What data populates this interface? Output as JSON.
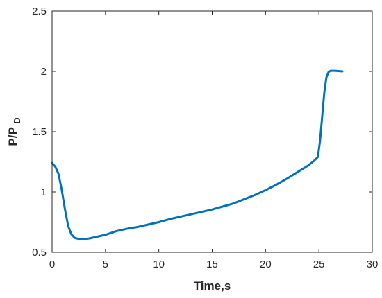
{
  "chart_data": {
    "type": "line",
    "title": "",
    "xlabel": "Time,s",
    "ylabel": "P/P",
    "ylabel_subscript": "D",
    "xlim": [
      0,
      30
    ],
    "ylim": [
      0.5,
      2.5
    ],
    "x_ticks": [
      0,
      5,
      10,
      15,
      20,
      25,
      30
    ],
    "x_tick_labels": [
      "0",
      "5",
      "10",
      "15",
      "20",
      "25",
      "30"
    ],
    "y_ticks": [
      0.5,
      1,
      1.5,
      2,
      2.5
    ],
    "y_tick_labels": [
      "0.5",
      "1",
      "1.5",
      "2",
      "2.5"
    ],
    "grid": false,
    "line_color": "#0072BD",
    "series": [
      {
        "x": [
          0,
          0.3,
          0.6,
          0.9,
          1.2,
          1.5,
          1.8,
          2.1,
          2.5,
          3.0,
          3.5,
          4.0,
          5,
          6,
          7,
          8,
          9,
          10,
          11,
          12,
          13,
          14,
          15,
          16,
          17,
          18,
          19,
          20,
          21,
          22,
          23,
          24,
          24.5,
          24.9,
          25.1,
          25.3,
          25.5,
          25.7,
          25.9,
          26.1,
          26.5,
          27.2
        ],
        "y": [
          1.24,
          1.21,
          1.15,
          1.02,
          0.86,
          0.72,
          0.65,
          0.62,
          0.61,
          0.61,
          0.615,
          0.625,
          0.645,
          0.675,
          0.695,
          0.71,
          0.73,
          0.75,
          0.775,
          0.795,
          0.815,
          0.835,
          0.855,
          0.88,
          0.905,
          0.94,
          0.975,
          1.015,
          1.06,
          1.11,
          1.165,
          1.22,
          1.255,
          1.29,
          1.42,
          1.62,
          1.82,
          1.95,
          1.995,
          2.005,
          2.005,
          2.0
        ]
      }
    ]
  }
}
